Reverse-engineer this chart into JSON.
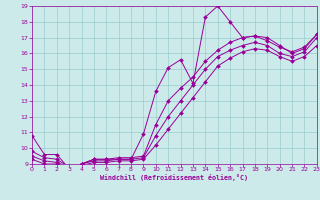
{
  "title": "",
  "xlabel": "Windchill (Refroidissement éolien,°C)",
  "bg_color": "#cceaea",
  "line_color": "#990099",
  "grid_color": "#99cccc",
  "xmin": 0,
  "xmax": 23,
  "ymin": 9,
  "ymax": 19,
  "lines": [
    {
      "x": [
        0,
        1,
        2,
        3,
        4,
        5,
        6,
        7,
        8,
        9,
        10,
        11,
        12,
        13,
        14,
        15,
        16,
        17,
        18,
        19,
        20,
        21,
        22,
        23
      ],
      "y": [
        10.8,
        9.6,
        9.6,
        8.7,
        9.0,
        9.3,
        9.3,
        9.3,
        9.3,
        10.9,
        13.6,
        15.1,
        15.6,
        14.1,
        18.3,
        19.0,
        18.0,
        17.0,
        17.1,
        17.0,
        16.5,
        16.0,
        16.3,
        17.2
      ]
    },
    {
      "x": [
        0,
        1,
        2,
        3,
        4,
        5,
        6,
        7,
        8,
        9,
        10,
        11,
        12,
        13,
        14,
        15,
        16,
        17,
        18,
        19,
        20,
        21,
        22,
        23
      ],
      "y": [
        9.8,
        9.4,
        9.3,
        8.8,
        9.0,
        9.3,
        9.3,
        9.4,
        9.4,
        9.5,
        11.5,
        13.0,
        13.8,
        14.5,
        15.5,
        16.2,
        16.7,
        17.0,
        17.1,
        16.8,
        16.4,
        16.1,
        16.4,
        17.2
      ]
    },
    {
      "x": [
        0,
        1,
        2,
        3,
        4,
        5,
        6,
        7,
        8,
        9,
        10,
        11,
        12,
        13,
        14,
        15,
        16,
        17,
        18,
        19,
        20,
        21,
        22,
        23
      ],
      "y": [
        9.5,
        9.2,
        9.1,
        8.8,
        9.0,
        9.2,
        9.2,
        9.3,
        9.3,
        9.4,
        10.8,
        12.0,
        13.0,
        14.0,
        15.0,
        15.8,
        16.2,
        16.5,
        16.7,
        16.5,
        16.0,
        15.8,
        16.1,
        17.0
      ]
    },
    {
      "x": [
        0,
        1,
        2,
        3,
        4,
        5,
        6,
        7,
        8,
        9,
        10,
        11,
        12,
        13,
        14,
        15,
        16,
        17,
        18,
        19,
        20,
        21,
        22,
        23
      ],
      "y": [
        9.3,
        9.0,
        9.0,
        8.7,
        8.9,
        9.1,
        9.1,
        9.2,
        9.2,
        9.3,
        10.2,
        11.2,
        12.2,
        13.2,
        14.2,
        15.2,
        15.7,
        16.1,
        16.3,
        16.2,
        15.8,
        15.5,
        15.8,
        16.5
      ]
    }
  ]
}
